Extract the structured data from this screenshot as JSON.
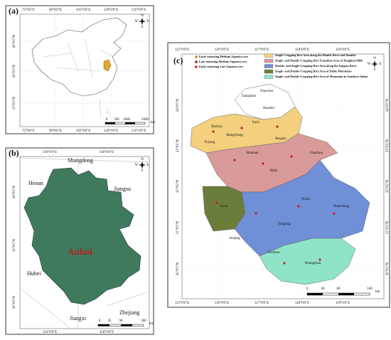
{
  "panels": [
    {
      "label": "(a)",
      "lon_ticks": [
        "75°0'0\"E",
        "90°0'0\"E",
        "105°0'0\"E",
        "120°0'0\"E",
        "135°0'0\"E"
      ],
      "lat_ticks": [
        "45°0'0\"N",
        "30°0'0\"N",
        "15°0'0\"N"
      ],
      "scale": [
        "0",
        "500",
        "1000",
        "2000"
      ],
      "scale_unit": "km",
      "compass": [
        "N",
        "W",
        "E",
        "S"
      ]
    },
    {
      "label": "(b)",
      "lon_ticks": [
        "116°0'0\"E",
        "118°0'0\"E"
      ],
      "lat_ticks": [
        "34°0'0\"N",
        "32°0'0\"N",
        "30°0'0\"N"
      ],
      "places": [
        "Shangdong",
        "Henan",
        "Jiangsu",
        "Hubei",
        "Anhui",
        "Jiangxi",
        "Zhejiang"
      ],
      "scale": [
        "0",
        "45",
        "90",
        "180"
      ],
      "scale_unit": "km",
      "compass": [
        "N",
        "W",
        "E",
        "S"
      ]
    },
    {
      "label": "(c)",
      "lon_ticks": [
        "115°0'0\"E",
        "116°0'0\"E",
        "117°0'0\"E",
        "118°0'0\"E",
        "119°0'0\"E"
      ],
      "lat_ticks": [
        "34°0'0\"N",
        "33°0'0\"N",
        "32°0'0\"N",
        "31°0'0\"N",
        "30°0'0\"N"
      ],
      "point_legend": [
        {
          "name": "Early-maturing Medium Japonica rice",
          "color": "#e07a1a"
        },
        {
          "name": "Late-maturing Medium Japonica rice",
          "color": "#9b1c1c"
        },
        {
          "name": "Early-maturing Late Japonica rice",
          "color": "#d62020"
        }
      ],
      "area_legend": [
        {
          "name": "Single-Cropping Rice Area along the Huaihe River and Huaibei",
          "color": "#f3cf7e"
        },
        {
          "name": "Single- and Double-Cropping Rice Transition Area of Jianghuai Hills",
          "color": "#d99a9a"
        },
        {
          "name": "Double- and Single-Cropping Rice Area along the Yangtze River",
          "color": "#6f8fd6"
        },
        {
          "name": "Single- and Double-Cropping Rice Area of Dabie Mountains",
          "color": "#6b7d3a"
        },
        {
          "name": "Single- and Double-Cropping Rice Area of Mountains in Southern Anhui",
          "color": "#8fe3c8"
        }
      ],
      "places": [
        "Dangshan",
        "Xiaoxian",
        "Huaibei",
        "Suixi",
        "Bozhou",
        "Mengcheng",
        "Fuyang",
        "Huainan",
        "Bengbu",
        "Chuzhou",
        "Hefei",
        "Lu'an",
        "Anqing",
        "Tongling",
        "Wuhu",
        "Xuancheng",
        "Chizhou",
        "Huangshan"
      ],
      "scale": [
        "0",
        "40",
        "80",
        "160"
      ],
      "scale_unit": "km",
      "compass": [
        "N",
        "W",
        "E",
        "S"
      ]
    }
  ]
}
